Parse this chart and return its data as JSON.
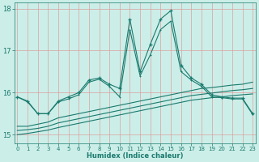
{
  "xlabel": "Humidex (Indice chaleur)",
  "x": [
    0,
    1,
    2,
    3,
    4,
    5,
    6,
    7,
    8,
    9,
    10,
    11,
    12,
    13,
    14,
    15,
    16,
    17,
    18,
    19,
    20,
    21,
    22,
    23
  ],
  "line1": [
    15.9,
    15.8,
    15.5,
    15.5,
    15.8,
    15.9,
    16.0,
    16.3,
    16.35,
    16.2,
    16.1,
    17.75,
    16.5,
    17.15,
    17.75,
    17.95,
    16.65,
    16.35,
    16.2,
    15.95,
    15.9,
    15.87,
    15.87,
    15.5
  ],
  "line2": [
    15.9,
    15.78,
    15.5,
    15.5,
    15.78,
    15.85,
    15.95,
    16.25,
    16.32,
    16.15,
    15.9,
    17.5,
    16.4,
    16.9,
    17.5,
    17.7,
    16.5,
    16.3,
    16.15,
    15.9,
    15.88,
    15.85,
    15.85,
    15.48
  ],
  "line3": [
    15.2,
    15.2,
    15.25,
    15.3,
    15.4,
    15.45,
    15.5,
    15.55,
    15.6,
    15.65,
    15.7,
    15.75,
    15.8,
    15.85,
    15.9,
    15.95,
    16.0,
    16.05,
    16.1,
    16.12,
    16.15,
    16.18,
    16.2,
    16.25
  ],
  "line4": [
    15.1,
    15.12,
    15.15,
    15.2,
    15.28,
    15.33,
    15.38,
    15.43,
    15.48,
    15.53,
    15.58,
    15.63,
    15.68,
    15.73,
    15.78,
    15.83,
    15.88,
    15.93,
    15.96,
    15.99,
    16.02,
    16.05,
    16.07,
    16.1
  ],
  "line5": [
    15.0,
    15.03,
    15.07,
    15.11,
    15.17,
    15.22,
    15.27,
    15.32,
    15.37,
    15.42,
    15.47,
    15.52,
    15.57,
    15.62,
    15.67,
    15.72,
    15.77,
    15.82,
    15.85,
    15.88,
    15.9,
    15.93,
    15.95,
    15.97
  ],
  "line_color": "#1a7a6e",
  "bg_color": "#cceee8",
  "grid_color": "#dba0a0",
  "ylim": [
    14.8,
    18.15
  ],
  "yticks": [
    15,
    16,
    17,
    18
  ],
  "xticks": [
    0,
    1,
    2,
    3,
    4,
    5,
    6,
    7,
    8,
    9,
    10,
    11,
    12,
    13,
    14,
    15,
    16,
    17,
    18,
    19,
    20,
    21,
    22,
    23
  ],
  "linewidth": 0.8,
  "markersize": 3.0
}
